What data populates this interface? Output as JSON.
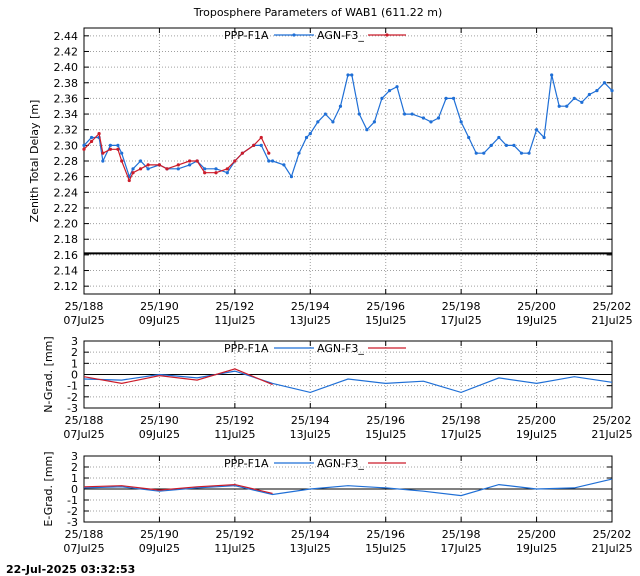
{
  "title": "Troposphere Parameters of WAB1 (611.22 m)",
  "footer_timestamp": "22-Jul-2025 03:32:53",
  "colors": {
    "ppp": "#1f6fd6",
    "agn": "#cc1c2a",
    "baseline": "#000000",
    "grid": "#a0a0a0"
  },
  "x_ticks": [
    {
      "doy": 188,
      "top": "25/188",
      "bottom": "07Jul25"
    },
    {
      "doy": 190,
      "top": "25/190",
      "bottom": "09Jul25"
    },
    {
      "doy": 192,
      "top": "25/192",
      "bottom": "11Jul25"
    },
    {
      "doy": 194,
      "top": "25/194",
      "bottom": "13Jul25"
    },
    {
      "doy": 196,
      "top": "25/196",
      "bottom": "15Jul25"
    },
    {
      "doy": 198,
      "top": "25/198",
      "bottom": "17Jul25"
    },
    {
      "doy": 200,
      "top": "25/200",
      "bottom": "19Jul25"
    },
    {
      "doy": 202,
      "top": "25/202",
      "bottom": "21Jul25"
    }
  ],
  "chart_data": [
    {
      "type": "line",
      "ylabel": "Zenith Total Delay [m]",
      "xlim": [
        188,
        202
      ],
      "ylim": [
        2.11,
        2.45
      ],
      "yticks": [
        2.12,
        2.14,
        2.16,
        2.18,
        2.2,
        2.22,
        2.24,
        2.26,
        2.28,
        2.3,
        2.32,
        2.34,
        2.36,
        2.38,
        2.4,
        2.42,
        2.44
      ],
      "grid": true,
      "legend": "top-center",
      "baseline": 2.162,
      "series": [
        {
          "name": "PPP-F1A",
          "x": [
            188.0,
            188.2,
            188.4,
            188.5,
            188.7,
            188.9,
            189.0,
            189.2,
            189.3,
            189.5,
            189.7,
            190.0,
            190.2,
            190.5,
            190.8,
            191.0,
            191.2,
            191.5,
            191.8,
            192.0,
            192.2,
            192.5,
            192.7,
            192.9,
            193.0,
            193.3,
            193.5,
            193.7,
            193.9,
            194.0,
            194.2,
            194.4,
            194.6,
            194.8,
            195.0,
            195.1,
            195.3,
            195.5,
            195.7,
            195.9,
            196.1,
            196.3,
            196.5,
            196.7,
            197.0,
            197.2,
            197.4,
            197.6,
            197.8,
            198.0,
            198.2,
            198.4,
            198.6,
            198.8,
            199.0,
            199.2,
            199.4,
            199.6,
            199.8,
            200.0,
            200.2,
            200.4,
            200.6,
            200.8,
            201.0,
            201.2,
            201.4,
            201.6,
            201.8,
            202.0
          ],
          "y": [
            2.3,
            2.31,
            2.31,
            2.28,
            2.3,
            2.3,
            2.29,
            2.26,
            2.27,
            2.28,
            2.27,
            2.275,
            2.27,
            2.27,
            2.275,
            2.28,
            2.27,
            2.27,
            2.265,
            2.28,
            2.29,
            2.3,
            2.3,
            2.28,
            2.28,
            2.275,
            2.26,
            2.29,
            2.31,
            2.315,
            2.33,
            2.34,
            2.33,
            2.35,
            2.39,
            2.39,
            2.34,
            2.32,
            2.33,
            2.36,
            2.37,
            2.375,
            2.34,
            2.34,
            2.335,
            2.33,
            2.335,
            2.36,
            2.36,
            2.33,
            2.31,
            2.29,
            2.29,
            2.3,
            2.31,
            2.3,
            2.3,
            2.29,
            2.29,
            2.32,
            2.31,
            2.39,
            2.35,
            2.35,
            2.36,
            2.355,
            2.365,
            2.37,
            2.38,
            2.37
          ]
        },
        {
          "name": "AGN-F3_",
          "x": [
            188.0,
            188.2,
            188.4,
            188.5,
            188.7,
            188.9,
            189.0,
            189.2,
            189.3,
            189.5,
            189.7,
            190.0,
            190.2,
            190.5,
            190.8,
            191.0,
            191.2,
            191.5,
            191.8,
            192.0,
            192.2,
            192.5,
            192.7,
            192.9
          ],
          "y": [
            2.295,
            2.305,
            2.315,
            2.29,
            2.295,
            2.295,
            2.28,
            2.255,
            2.265,
            2.27,
            2.275,
            2.275,
            2.27,
            2.275,
            2.28,
            2.28,
            2.265,
            2.265,
            2.27,
            2.28,
            2.29,
            2.3,
            2.31,
            2.29
          ]
        }
      ]
    },
    {
      "type": "line",
      "ylabel": "N-Grad. [mm]",
      "xlim": [
        188,
        202
      ],
      "ylim": [
        -3,
        3
      ],
      "yticks": [
        -3,
        -2,
        -1,
        0,
        1,
        2,
        3
      ],
      "grid": true,
      "legend": "top-center",
      "baseline": 0,
      "series": [
        {
          "name": "PPP-F1A",
          "x": [
            188,
            189,
            190,
            191,
            192,
            193,
            194,
            195,
            196,
            197,
            198,
            199,
            200,
            201,
            202
          ],
          "y": [
            -0.4,
            -0.5,
            0.0,
            -0.3,
            0.3,
            -0.8,
            -1.6,
            -0.4,
            -0.8,
            -0.6,
            -1.6,
            -0.3,
            -0.8,
            -0.2,
            -0.7
          ]
        },
        {
          "name": "AGN-F3_",
          "x": [
            188,
            189,
            190,
            191,
            192,
            193
          ],
          "y": [
            -0.2,
            -0.8,
            -0.1,
            -0.5,
            0.5,
            -0.9
          ]
        }
      ]
    },
    {
      "type": "line",
      "ylabel": "E-Grad. [mm]",
      "xlim": [
        188,
        202
      ],
      "ylim": [
        -3,
        3
      ],
      "yticks": [
        -3,
        -2,
        -1,
        0,
        1,
        2,
        3
      ],
      "grid": true,
      "legend": "top-center",
      "baseline": 0,
      "series": [
        {
          "name": "PPP-F1A",
          "x": [
            188,
            189,
            190,
            191,
            192,
            193,
            194,
            195,
            196,
            197,
            198,
            199,
            200,
            201,
            202
          ],
          "y": [
            0.1,
            0.2,
            -0.2,
            0.1,
            0.3,
            -0.5,
            0.0,
            0.3,
            0.1,
            -0.2,
            -0.6,
            0.4,
            0.0,
            0.1,
            0.9
          ]
        },
        {
          "name": "AGN-F3_",
          "x": [
            188,
            189,
            190,
            191,
            192,
            193
          ],
          "y": [
            0.2,
            0.3,
            -0.1,
            0.2,
            0.4,
            -0.4
          ]
        }
      ]
    }
  ]
}
